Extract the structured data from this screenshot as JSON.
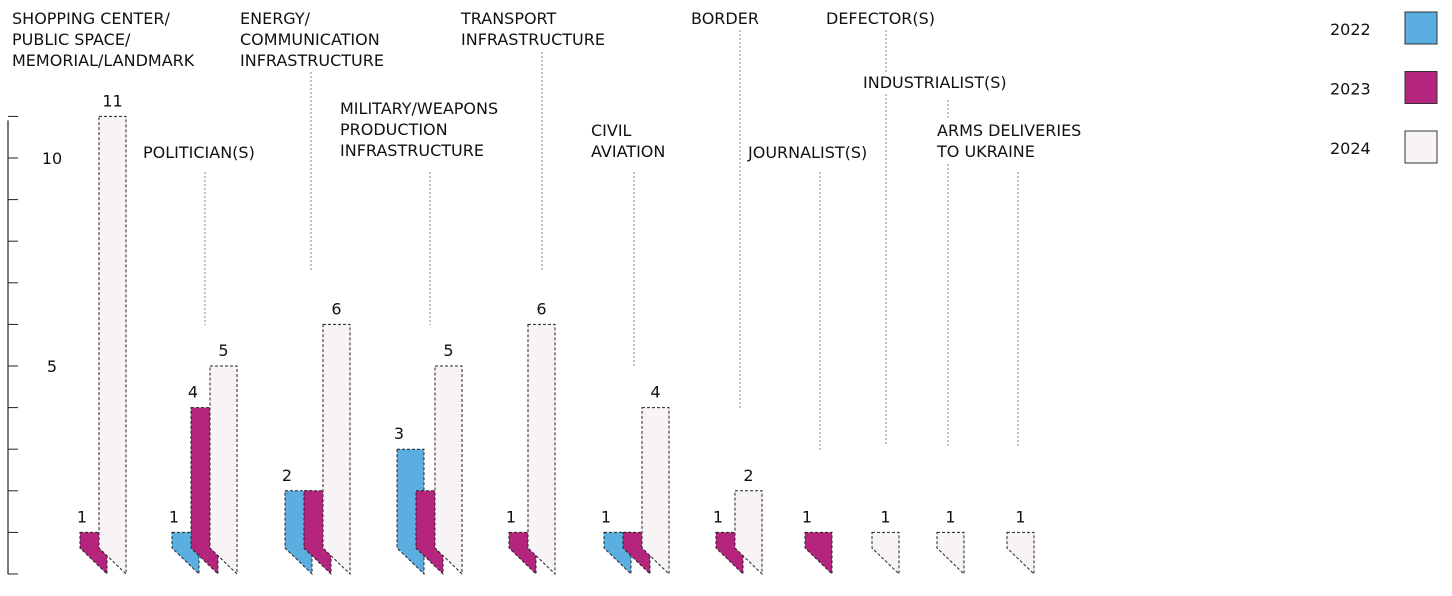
{
  "chart_data": {
    "type": "bar",
    "categories": [
      "SHOPPING CENTER/\nPUBLIC SPACE/\nMEMORIAL/LANDMARK",
      "POLITICIAN(S)",
      "ENERGY/\nCOMMUNICATION\nINFRASTRUCTURE",
      "MILITARY/WEAPONS\nPRODUCTION\nINFRASTRUCTURE",
      "TRANSPORT\nINFRASTRUCTURE",
      "CIVIL\nAVIATION",
      "BORDER",
      "JOURNALIST(S)",
      "DEFECTOR(S)",
      "INDUSTRIALIST(S)",
      "ARMS DELIVERIES\nTO UKRAINE"
    ],
    "series": [
      {
        "name": "2022",
        "color": "#5aafe0",
        "values": [
          null,
          1,
          2,
          3,
          null,
          1,
          null,
          null,
          null,
          null,
          null
        ],
        "value_labels": [
          null,
          "1",
          "2",
          "3",
          null,
          "1",
          null,
          null,
          null,
          null,
          null
        ]
      },
      {
        "name": "2023",
        "color": "#b5257e",
        "values": [
          1,
          4,
          2,
          2,
          1,
          1,
          1,
          1,
          null,
          null,
          null
        ],
        "value_labels": [
          "1",
          "4",
          null,
          null,
          "1",
          null,
          "1",
          "1",
          null,
          null,
          null
        ]
      },
      {
        "name": "2024",
        "color": "#f8f4f5",
        "values": [
          11,
          5,
          6,
          5,
          6,
          4,
          2,
          null,
          1,
          1,
          1
        ],
        "value_labels": [
          "11",
          "5",
          "6",
          "5",
          "6",
          "4",
          "2",
          null,
          "1",
          "1",
          "1"
        ]
      }
    ],
    "ylim": [
      0,
      11
    ],
    "yticks": [
      5,
      10
    ],
    "minor_yticks": [
      0,
      1,
      2,
      3,
      4,
      5,
      6,
      7,
      8,
      9,
      10,
      11
    ],
    "legend": "top-right"
  }
}
